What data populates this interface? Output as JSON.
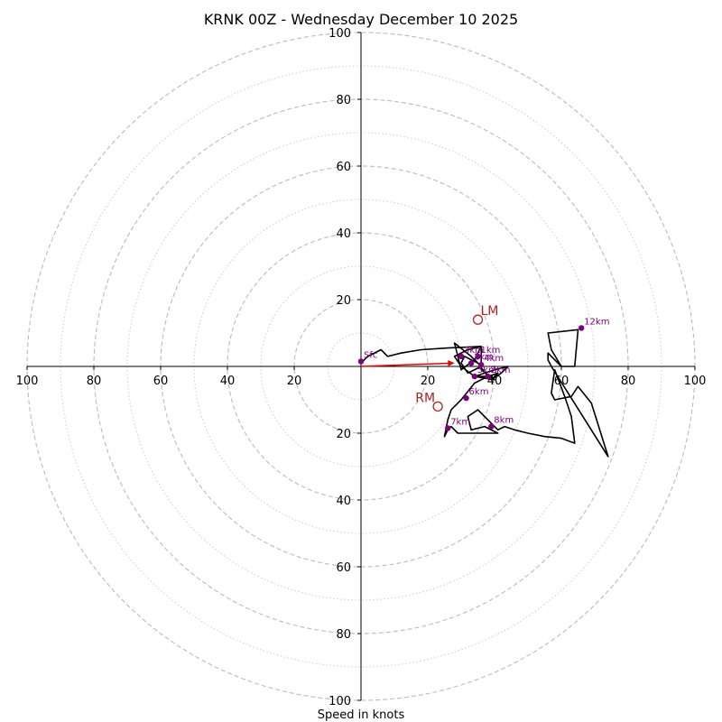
{
  "chart_data": {
    "type": "hodograph",
    "title": "KRNK 00Z - Wednesday December 10 2025",
    "xlabel": "Speed in knots",
    "range": 100,
    "ring_step": 10,
    "tick_labels": [
      "100",
      "80",
      "60",
      "40",
      "20",
      "20",
      "40",
      "60",
      "80",
      "100"
    ],
    "tick_values": [
      -100,
      -80,
      -60,
      -40,
      -20,
      20,
      40,
      60,
      80,
      100
    ],
    "trace": [
      [
        0,
        1
      ],
      [
        2,
        3
      ],
      [
        6,
        5
      ],
      [
        8,
        3
      ],
      [
        12,
        4
      ],
      [
        18,
        5
      ],
      [
        26,
        5.5
      ],
      [
        36,
        6
      ],
      [
        36,
        3
      ],
      [
        36,
        -1
      ],
      [
        40,
        -4
      ],
      [
        34,
        -3
      ],
      [
        30,
        0
      ],
      [
        28,
        3
      ],
      [
        32,
        5
      ],
      [
        36,
        6
      ],
      [
        34,
        2
      ],
      [
        30,
        -1
      ],
      [
        28,
        7
      ],
      [
        33,
        3
      ],
      [
        36,
        0
      ],
      [
        32,
        -2
      ],
      [
        30,
        1
      ],
      [
        31,
        3
      ],
      [
        35,
        1
      ],
      [
        38,
        -3
      ],
      [
        34,
        -3
      ],
      [
        40,
        -1
      ],
      [
        44,
        0
      ],
      [
        42,
        -2
      ],
      [
        39,
        -4
      ],
      [
        41,
        -2
      ],
      [
        38,
        -3
      ],
      [
        34,
        -5
      ],
      [
        30,
        -10
      ],
      [
        27,
        -13
      ],
      [
        26,
        -16
      ],
      [
        25,
        -21
      ],
      [
        26,
        -19
      ],
      [
        27,
        -18
      ],
      [
        29,
        -20
      ],
      [
        35,
        -20
      ],
      [
        41,
        -20
      ],
      [
        37,
        -18
      ],
      [
        33,
        -19
      ],
      [
        32,
        -15
      ],
      [
        35,
        -13
      ],
      [
        39,
        -17
      ],
      [
        41,
        -19
      ],
      [
        43,
        -18
      ],
      [
        46,
        -19
      ],
      [
        50,
        -20
      ],
      [
        55,
        -21
      ],
      [
        60,
        -21.5
      ],
      [
        64,
        -23
      ],
      [
        63,
        -15
      ],
      [
        61,
        -9
      ],
      [
        58,
        -1
      ],
      [
        57,
        -8
      ],
      [
        58,
        -10
      ],
      [
        63,
        -9
      ],
      [
        65,
        -6
      ],
      [
        69,
        -11
      ],
      [
        74,
        -27
      ],
      [
        57,
        0
      ],
      [
        56,
        2
      ],
      [
        56,
        4
      ],
      [
        60,
        0
      ],
      [
        57,
        5
      ],
      [
        56,
        10
      ],
      [
        65,
        11
      ],
      [
        64,
        0
      ],
      [
        60,
        0
      ]
    ],
    "height_markers": [
      {
        "label": "Sfc",
        "u": 0,
        "v": 1.5
      },
      {
        "label": "1km",
        "u": 35,
        "v": 3
      },
      {
        "label": "2km",
        "u": 33,
        "v": 1
      },
      {
        "label": "3km",
        "u": 30,
        "v": 3
      },
      {
        "label": "4km",
        "u": 36,
        "v": 0.5
      },
      {
        "label": "5km",
        "u": 34,
        "v": -3
      },
      {
        "label": "6km",
        "u": 31.5,
        "v": -9.5
      },
      {
        "label": "7km",
        "u": 26,
        "v": -18.5
      },
      {
        "label": "8km",
        "u": 39,
        "v": -18
      },
      {
        "label": "12km",
        "u": 66,
        "v": 11.5
      },
      {
        "label": "2km",
        "u": 38,
        "v": -3
      }
    ],
    "storm_motion": [
      {
        "label": "LM",
        "u": 35,
        "v": 14
      },
      {
        "label": "RM",
        "u": 23,
        "v": -12
      }
    ],
    "mean_wind_vector": {
      "u": 28,
      "v": 1
    },
    "colors": {
      "trace": "#000000",
      "marker": "#800080",
      "storm_motion": "#b22222",
      "vector": "#ee0000",
      "ring_major": "#bbbbbb",
      "ring_minor": "#cccccc"
    }
  }
}
